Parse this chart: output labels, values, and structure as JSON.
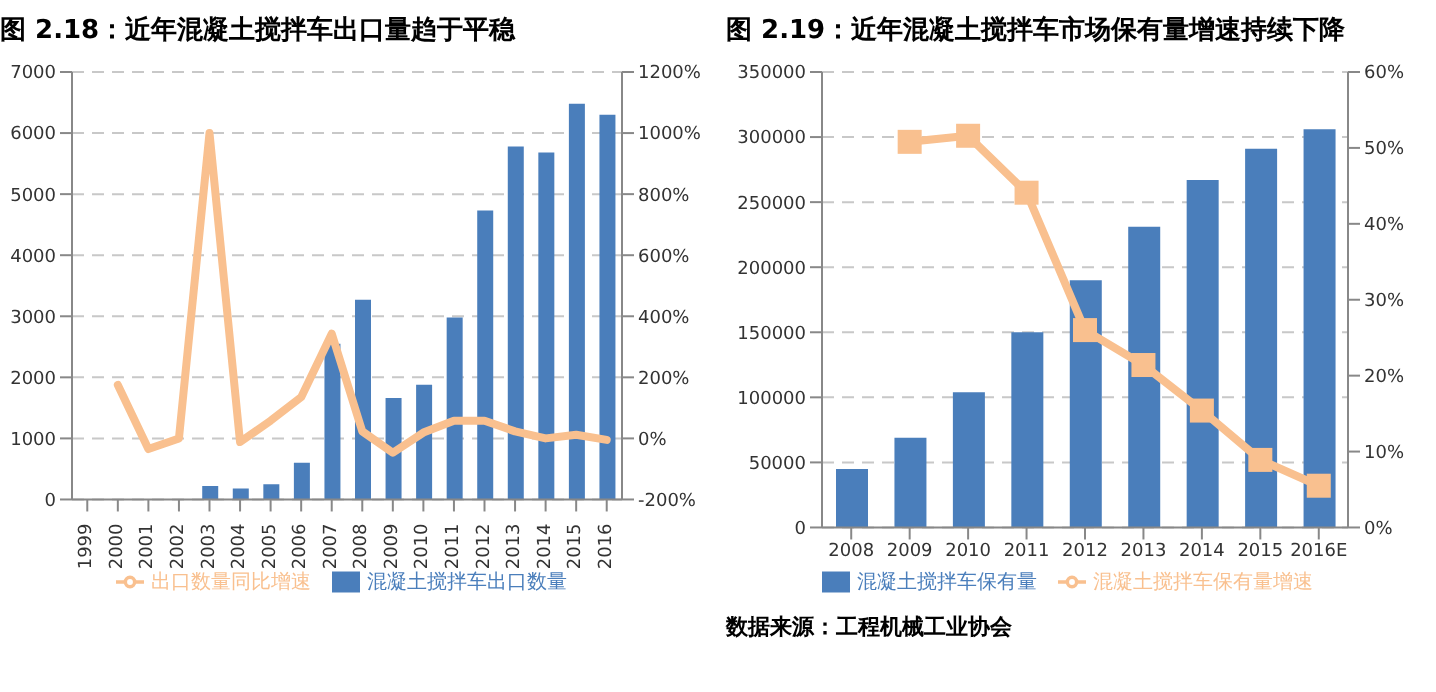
{
  "chart_data": [
    {
      "type": "bar",
      "title": "图 2.18：近年混凝土搅拌车出口量趋于平稳",
      "categories": [
        "1999",
        "2000",
        "2001",
        "2002",
        "2003",
        "2004",
        "2005",
        "2006",
        "2007",
        "2008",
        "2009",
        "2010",
        "2011",
        "2012",
        "2013",
        "2014",
        "2015",
        "2016"
      ],
      "series": [
        {
          "name": "混凝土搅拌车出口数量",
          "color": "#4a7ebb",
          "values": [
            0,
            null,
            0,
            0,
            220,
            180,
            250,
            600,
            2550,
            3270,
            1660,
            1880,
            2980,
            4730,
            5780,
            5680,
            6480,
            6300
          ]
        },
        {
          "name": "出口数量同比增速",
          "type": "line",
          "axis": "y2",
          "color": "#f9c08f",
          "marker": "none",
          "values": [
            null,
            175,
            -35,
            0,
            1000,
            -12,
            58,
            135,
            343,
            23,
            -47,
            19,
            58,
            58,
            23,
            0,
            12,
            -5
          ]
        }
      ],
      "ylim": [
        0,
        7000
      ],
      "yticks": [
        0,
        1000,
        2000,
        3000,
        4000,
        5000,
        6000,
        7000
      ],
      "y2lim": [
        -200,
        1200
      ],
      "y2ticks": [
        {
          "value": -200,
          "label": "-200%"
        },
        {
          "value": 0,
          "label": "0%"
        },
        {
          "value": 200,
          "label": "200%"
        },
        {
          "value": 400,
          "label": "400%"
        },
        {
          "value": 600,
          "label": "600%"
        },
        {
          "value": 800,
          "label": "800%"
        },
        {
          "value": 1000,
          "label": "1000%"
        },
        {
          "value": 1200,
          "label": "1200%"
        }
      ],
      "grid": "y",
      "legend": "bottom"
    },
    {
      "type": "bar",
      "title": "图 2.19：近年混凝土搅拌车市场保有量增速持续下降",
      "categories": [
        "2008",
        "2009",
        "2010",
        "2011",
        "2012",
        "2013",
        "2014",
        "2015",
        "2016E"
      ],
      "series": [
        {
          "name": "混凝土搅拌车保有量",
          "color": "#4a7ebb",
          "values": [
            45000,
            69000,
            104000,
            150000,
            190000,
            231000,
            267000,
            291000,
            306000
          ]
        },
        {
          "name": "混凝土搅拌车保有量增速",
          "type": "line",
          "axis": "y2",
          "color": "#f9c08f",
          "marker": "square",
          "values": [
            null,
            50.8,
            51.6,
            44.1,
            26,
            21.4,
            15.4,
            8.9,
            5.5
          ]
        }
      ],
      "ylim": [
        0,
        350000
      ],
      "yticks": [
        0,
        50000,
        100000,
        150000,
        200000,
        250000,
        300000,
        350000
      ],
      "y2lim": [
        0,
        60
      ],
      "y2ticks": [
        {
          "value": 0,
          "label": "0%"
        },
        {
          "value": 10,
          "label": "10%"
        },
        {
          "value": 20,
          "label": "20%"
        },
        {
          "value": 30,
          "label": "30%"
        },
        {
          "value": 40,
          "label": "40%"
        },
        {
          "value": 50,
          "label": "50%"
        },
        {
          "value": 60,
          "label": "60%"
        }
      ],
      "grid": "y",
      "legend": "bottom",
      "annotations": [
        "数据来源：工程机械工业协会"
      ]
    }
  ]
}
